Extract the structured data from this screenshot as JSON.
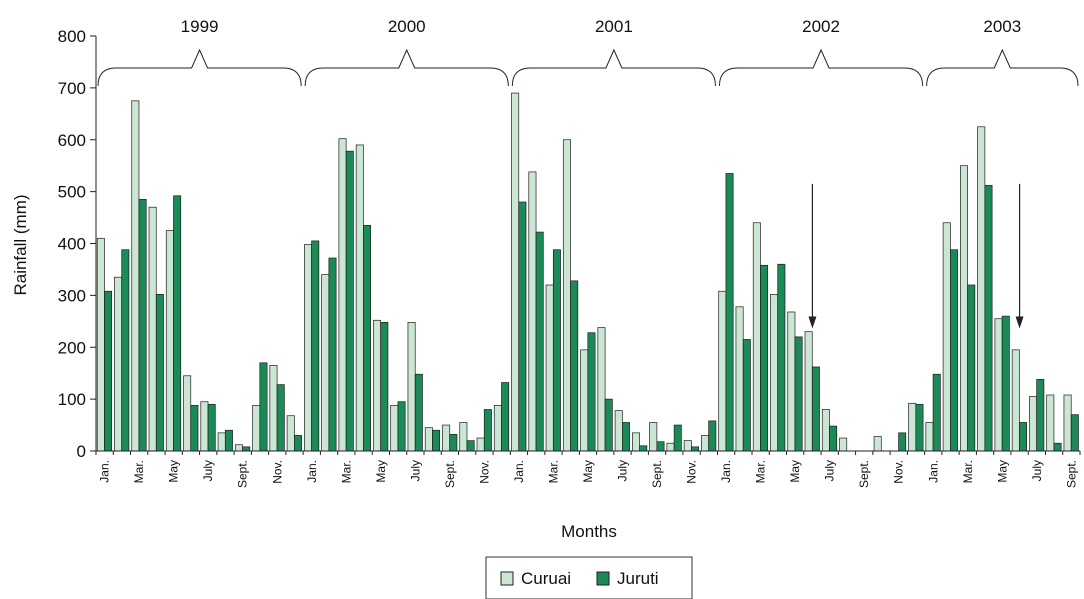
{
  "chart_data": {
    "type": "bar",
    "ylabel": "Rainfall (mm)",
    "xlabel": "Months",
    "ylim": [
      0,
      800
    ],
    "yticks": [
      0,
      100,
      200,
      300,
      400,
      500,
      600,
      700,
      800
    ],
    "grid": false,
    "legend_position": "bottom-center",
    "colors": {
      "Curuai": "#cce6d4",
      "Juruti": "#1b8a56"
    },
    "years": [
      {
        "label": "1999",
        "start_index": 0,
        "end_index": 11
      },
      {
        "label": "2000",
        "start_index": 12,
        "end_index": 23
      },
      {
        "label": "2001",
        "start_index": 24,
        "end_index": 35
      },
      {
        "label": "2002",
        "start_index": 36,
        "end_index": 47
      },
      {
        "label": "2003",
        "start_index": 48,
        "end_index": 56
      }
    ],
    "month_tick_labels": [
      "Jan.",
      "Mar.",
      "May",
      "July",
      "Sept.",
      "Nov."
    ],
    "month_tick_offsets": [
      0,
      2,
      4,
      6,
      8,
      10
    ],
    "series": [
      {
        "name": "Curuai",
        "values": [
          410,
          335,
          675,
          470,
          425,
          145,
          95,
          35,
          12,
          88,
          165,
          68,
          398,
          340,
          602,
          590,
          252,
          88,
          248,
          45,
          50,
          55,
          25,
          88,
          690,
          538,
          320,
          600,
          195,
          238,
          78,
          35,
          55,
          15,
          20,
          30,
          308,
          278,
          440,
          302,
          268,
          230,
          80,
          25,
          0,
          28,
          0,
          92,
          55,
          440,
          550,
          625,
          255,
          195,
          105,
          108,
          108
        ]
      },
      {
        "name": "Juruti",
        "values": [
          308,
          388,
          485,
          302,
          492,
          88,
          90,
          40,
          8,
          170,
          128,
          30,
          405,
          372,
          578,
          435,
          248,
          95,
          148,
          40,
          32,
          20,
          80,
          132,
          480,
          422,
          388,
          328,
          228,
          100,
          55,
          10,
          18,
          50,
          8,
          58,
          535,
          215,
          358,
          360,
          220,
          162,
          48,
          0,
          0,
          0,
          35,
          90,
          148,
          388,
          320,
          512,
          260,
          55,
          138,
          15,
          70
        ]
      }
    ],
    "annotations": [
      {
        "type": "arrow",
        "index": 41,
        "y_from": 515,
        "y_to": 240
      },
      {
        "type": "arrow",
        "index": 53,
        "y_from": 515,
        "y_to": 240
      }
    ]
  }
}
